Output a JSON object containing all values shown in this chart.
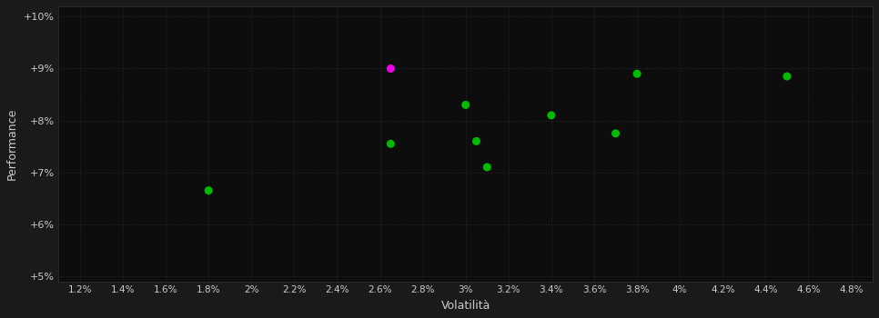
{
  "background_color": "#1a1a1a",
  "plot_bg_color": "#0d0d0d",
  "grid_color": "#2a2a2a",
  "text_color": "#cccccc",
  "xlabel": "Volatilità",
  "ylabel": "Performance",
  "xlim": [
    0.011,
    0.049
  ],
  "ylim": [
    0.049,
    0.102
  ],
  "xtick_values": [
    0.012,
    0.014,
    0.016,
    0.018,
    0.02,
    0.022,
    0.024,
    0.026,
    0.028,
    0.03,
    0.032,
    0.034,
    0.036,
    0.038,
    0.04,
    0.042,
    0.044,
    0.046,
    0.048
  ],
  "xtick_labels": [
    "1.2%",
    "1.4%",
    "1.6%",
    "1.8%",
    "2%",
    "2.2%",
    "2.4%",
    "2.6%",
    "2.8%",
    "3%",
    "3.2%",
    "3.4%",
    "3.6%",
    "3.8%",
    "4%",
    "4.2%",
    "4.4%",
    "4.6%",
    "4.8%"
  ],
  "ytick_values": [
    0.05,
    0.06,
    0.07,
    0.08,
    0.09,
    0.1
  ],
  "ytick_labels": [
    "+5%",
    "+6%",
    "+7%",
    "+8%",
    "+9%",
    "+10%"
  ],
  "green_points": [
    [
      0.018,
      0.0665
    ],
    [
      0.0265,
      0.0755
    ],
    [
      0.03,
      0.083
    ],
    [
      0.0305,
      0.076
    ],
    [
      0.031,
      0.071
    ],
    [
      0.034,
      0.081
    ],
    [
      0.037,
      0.0775
    ],
    [
      0.038,
      0.089
    ],
    [
      0.045,
      0.0885
    ]
  ],
  "magenta_points": [
    [
      0.0265,
      0.09
    ]
  ],
  "green_color": "#00bb00",
  "magenta_color": "#ee00ee",
  "marker_size": 42,
  "figsize": [
    9.66,
    3.5
  ],
  "dpi": 100
}
